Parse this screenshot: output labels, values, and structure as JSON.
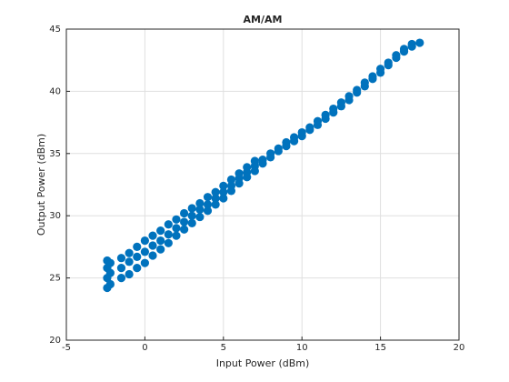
{
  "chart_data": {
    "type": "scatter",
    "title": "AM/AM",
    "xlabel": "Input Power (dBm)",
    "ylabel": "Output Power (dBm)",
    "color": "#0072bd",
    "grid": true,
    "xlim": [
      -5,
      20
    ],
    "xticks": [
      -5,
      0,
      5,
      10,
      15,
      20
    ],
    "ylim": [
      20,
      45
    ],
    "yticks": [
      20,
      25,
      30,
      35,
      40,
      45
    ],
    "x": [
      -2.4,
      -2.4,
      -2.4,
      -2.4,
      -2.2,
      -2.2,
      -2.2,
      -1.5,
      -1.5,
      -1.5,
      -1,
      -1,
      -1,
      -0.5,
      -0.5,
      -0.5,
      0,
      0,
      0,
      0.5,
      0.5,
      0.5,
      1,
      1,
      1,
      1.5,
      1.5,
      1.5,
      2,
      2,
      2,
      2.5,
      2.5,
      2.5,
      3,
      3,
      3,
      3.5,
      3.5,
      3.5,
      4,
      4,
      4,
      4.5,
      4.5,
      4.5,
      5,
      5,
      5,
      5.5,
      5.5,
      5.5,
      6,
      6,
      6,
      6.5,
      6.5,
      6.5,
      7,
      7,
      7,
      7.5,
      7.5,
      8,
      8,
      8.5,
      8.5,
      9,
      9,
      9.5,
      9.5,
      10,
      10,
      10.5,
      10.5,
      11,
      11,
      11.5,
      11.5,
      12,
      12,
      12.5,
      12.5,
      13,
      13,
      13.5,
      13.5,
      14,
      14,
      14.5,
      14.5,
      15,
      15,
      15.5,
      15.5,
      16,
      16,
      16.5,
      16.5,
      17,
      17,
      17.5
    ],
    "y": [
      24.2,
      25.0,
      25.8,
      26.4,
      24.5,
      25.4,
      26.2,
      25.0,
      25.8,
      26.6,
      25.3,
      26.3,
      27.0,
      25.8,
      26.7,
      27.5,
      26.2,
      27.1,
      28.0,
      26.8,
      27.6,
      28.4,
      27.3,
      28.0,
      28.8,
      27.8,
      28.5,
      29.3,
      28.4,
      29.0,
      29.7,
      28.9,
      29.5,
      30.2,
      29.4,
      30.0,
      30.6,
      29.9,
      30.5,
      31.0,
      30.4,
      30.9,
      31.5,
      30.9,
      31.4,
      31.9,
      31.4,
      31.9,
      32.4,
      32.0,
      32.4,
      32.9,
      32.6,
      33.0,
      33.4,
      33.1,
      33.5,
      33.9,
      33.6,
      34.0,
      34.4,
      34.2,
      34.5,
      34.7,
      35.0,
      35.2,
      35.4,
      35.6,
      35.9,
      36.0,
      36.3,
      36.4,
      36.7,
      36.9,
      37.1,
      37.3,
      37.6,
      37.8,
      38.1,
      38.3,
      38.6,
      38.8,
      39.1,
      39.3,
      39.6,
      39.9,
      40.1,
      40.4,
      40.7,
      41.0,
      41.2,
      41.5,
      41.8,
      42.1,
      42.3,
      42.7,
      42.9,
      43.2,
      43.4,
      43.6,
      43.8,
      43.9
    ]
  }
}
